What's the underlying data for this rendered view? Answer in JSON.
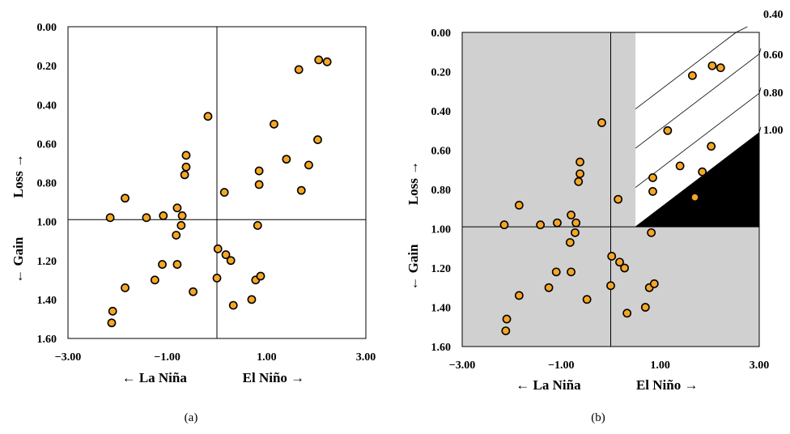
{
  "chart_data": [
    {
      "type": "scatter",
      "panel_label": "(a)",
      "xlim": [
        -3.0,
        3.0
      ],
      "ylim": [
        0.0,
        1.6
      ],
      "y_inverted": true,
      "x_ticks": [
        "−3.00",
        "−1.00",
        "1.00",
        "3.00"
      ],
      "x_tick_values": [
        -3,
        -1,
        1,
        3
      ],
      "y_ticks": [
        "0.00",
        "0.20",
        "0.40",
        "0.60",
        "0.80",
        "1.00",
        "1.20",
        "1.40",
        "1.60"
      ],
      "y_tick_values": [
        0,
        0.2,
        0.4,
        0.6,
        0.8,
        1.0,
        1.2,
        1.4,
        1.6
      ],
      "xlabel_left": "← La Niña",
      "xlabel_right": "El Niño →",
      "ylabel_top": "Loss →",
      "ylabel_bottom": "← Gain",
      "reference_lines": {
        "x": 0.0,
        "y": 0.99
      },
      "grid": false,
      "marker_color": "#f5a623",
      "marker_edge": "#000000",
      "points": [
        {
          "x": 2.05,
          "y": 0.17
        },
        {
          "x": 2.22,
          "y": 0.18
        },
        {
          "x": 1.65,
          "y": 0.22
        },
        {
          "x": 1.15,
          "y": 0.5
        },
        {
          "x": -0.18,
          "y": 0.46
        },
        {
          "x": 2.03,
          "y": 0.58
        },
        {
          "x": 1.85,
          "y": 0.71
        },
        {
          "x": 1.4,
          "y": 0.68
        },
        {
          "x": 0.85,
          "y": 0.74
        },
        {
          "x": 0.85,
          "y": 0.81
        },
        {
          "x": 1.7,
          "y": 0.84
        },
        {
          "x": 0.15,
          "y": 0.85
        },
        {
          "x": -0.62,
          "y": 0.66
        },
        {
          "x": -0.62,
          "y": 0.72
        },
        {
          "x": -0.65,
          "y": 0.76
        },
        {
          "x": -1.85,
          "y": 0.88
        },
        {
          "x": -1.42,
          "y": 0.98
        },
        {
          "x": -0.8,
          "y": 0.93
        },
        {
          "x": -0.7,
          "y": 0.97
        },
        {
          "x": -1.08,
          "y": 0.97
        },
        {
          "x": -0.72,
          "y": 1.02
        },
        {
          "x": -0.82,
          "y": 1.07
        },
        {
          "x": -2.15,
          "y": 0.98
        },
        {
          "x": 0.82,
          "y": 1.02
        },
        {
          "x": 0.02,
          "y": 1.14
        },
        {
          "x": 0.18,
          "y": 1.17
        },
        {
          "x": 0.28,
          "y": 1.2
        },
        {
          "x": -1.1,
          "y": 1.22
        },
        {
          "x": -0.8,
          "y": 1.22
        },
        {
          "x": -1.85,
          "y": 1.34
        },
        {
          "x": -1.25,
          "y": 1.3
        },
        {
          "x": 0.0,
          "y": 1.29
        },
        {
          "x": -0.48,
          "y": 1.36
        },
        {
          "x": 0.78,
          "y": 1.3
        },
        {
          "x": 0.88,
          "y": 1.28
        },
        {
          "x": 0.7,
          "y": 1.4
        },
        {
          "x": 0.33,
          "y": 1.43
        },
        {
          "x": -2.1,
          "y": 1.46
        },
        {
          "x": -2.12,
          "y": 1.52
        }
      ]
    },
    {
      "type": "scatter",
      "panel_label": "(b)",
      "xlim": [
        -3.0,
        3.0
      ],
      "ylim": [
        0.0,
        1.6
      ],
      "y_inverted": true,
      "x_ticks": [
        "−3.00",
        "−1.00",
        "1.00",
        "3.00"
      ],
      "x_tick_values": [
        -3,
        -1,
        1,
        3
      ],
      "y_ticks": [
        "0.00",
        "0.20",
        "0.40",
        "0.60",
        "0.80",
        "1.00",
        "1.20",
        "1.40",
        "1.60"
      ],
      "y_tick_values": [
        0,
        0.2,
        0.4,
        0.6,
        0.8,
        1.0,
        1.2,
        1.4,
        1.6
      ],
      "xlabel_left": "← La Niña",
      "xlabel_right": "El Niño →",
      "ylabel_top": "Loss →",
      "ylabel_bottom": "← Gain",
      "reference_lines": {
        "x": 0.0,
        "y": 0.99
      },
      "grid": false,
      "background_shade": "#d0d0d0",
      "unshaded_region": {
        "x_min": 0.5,
        "y_max": 0.99
      },
      "black_region": {
        "x_from": 0.5,
        "x_to": 3.0,
        "y_at_x_from": 0.99,
        "y_at_x_to": 0.51
      },
      "diagonal_lines": [
        {
          "label": "0.40",
          "x_start": 0.5,
          "y_start": 0.39
        },
        {
          "label": "0.60",
          "x_start": 0.5,
          "y_start": 0.59
        },
        {
          "label": "0.80",
          "x_start": 0.5,
          "y_start": 0.79
        },
        {
          "label": "1.00",
          "x_start": 0.5,
          "y_start": 0.99
        }
      ],
      "diagonal_slope": -0.192,
      "marker_color": "#f5a623",
      "marker_edge": "#000000",
      "points": [
        {
          "x": 2.05,
          "y": 0.17
        },
        {
          "x": 2.22,
          "y": 0.18
        },
        {
          "x": 1.65,
          "y": 0.22
        },
        {
          "x": 1.15,
          "y": 0.5
        },
        {
          "x": -0.18,
          "y": 0.46
        },
        {
          "x": 2.03,
          "y": 0.58
        },
        {
          "x": 1.85,
          "y": 0.71
        },
        {
          "x": 1.4,
          "y": 0.68
        },
        {
          "x": 0.85,
          "y": 0.74
        },
        {
          "x": 0.85,
          "y": 0.81
        },
        {
          "x": 1.7,
          "y": 0.84
        },
        {
          "x": 0.15,
          "y": 0.85
        },
        {
          "x": -0.62,
          "y": 0.66
        },
        {
          "x": -0.62,
          "y": 0.72
        },
        {
          "x": -0.65,
          "y": 0.76
        },
        {
          "x": -1.85,
          "y": 0.88
        },
        {
          "x": -1.42,
          "y": 0.98
        },
        {
          "x": -0.8,
          "y": 0.93
        },
        {
          "x": -0.7,
          "y": 0.97
        },
        {
          "x": -1.08,
          "y": 0.97
        },
        {
          "x": -0.72,
          "y": 1.02
        },
        {
          "x": -0.82,
          "y": 1.07
        },
        {
          "x": -2.15,
          "y": 0.98
        },
        {
          "x": 0.82,
          "y": 1.02
        },
        {
          "x": 0.02,
          "y": 1.14
        },
        {
          "x": 0.18,
          "y": 1.17
        },
        {
          "x": 0.28,
          "y": 1.2
        },
        {
          "x": -1.1,
          "y": 1.22
        },
        {
          "x": -0.8,
          "y": 1.22
        },
        {
          "x": -1.85,
          "y": 1.34
        },
        {
          "x": -1.25,
          "y": 1.3
        },
        {
          "x": 0.0,
          "y": 1.29
        },
        {
          "x": -0.48,
          "y": 1.36
        },
        {
          "x": 0.78,
          "y": 1.3
        },
        {
          "x": 0.88,
          "y": 1.28
        },
        {
          "x": 0.7,
          "y": 1.4
        },
        {
          "x": 0.33,
          "y": 1.43
        },
        {
          "x": -2.1,
          "y": 1.46
        },
        {
          "x": -2.12,
          "y": 1.52
        }
      ]
    }
  ]
}
